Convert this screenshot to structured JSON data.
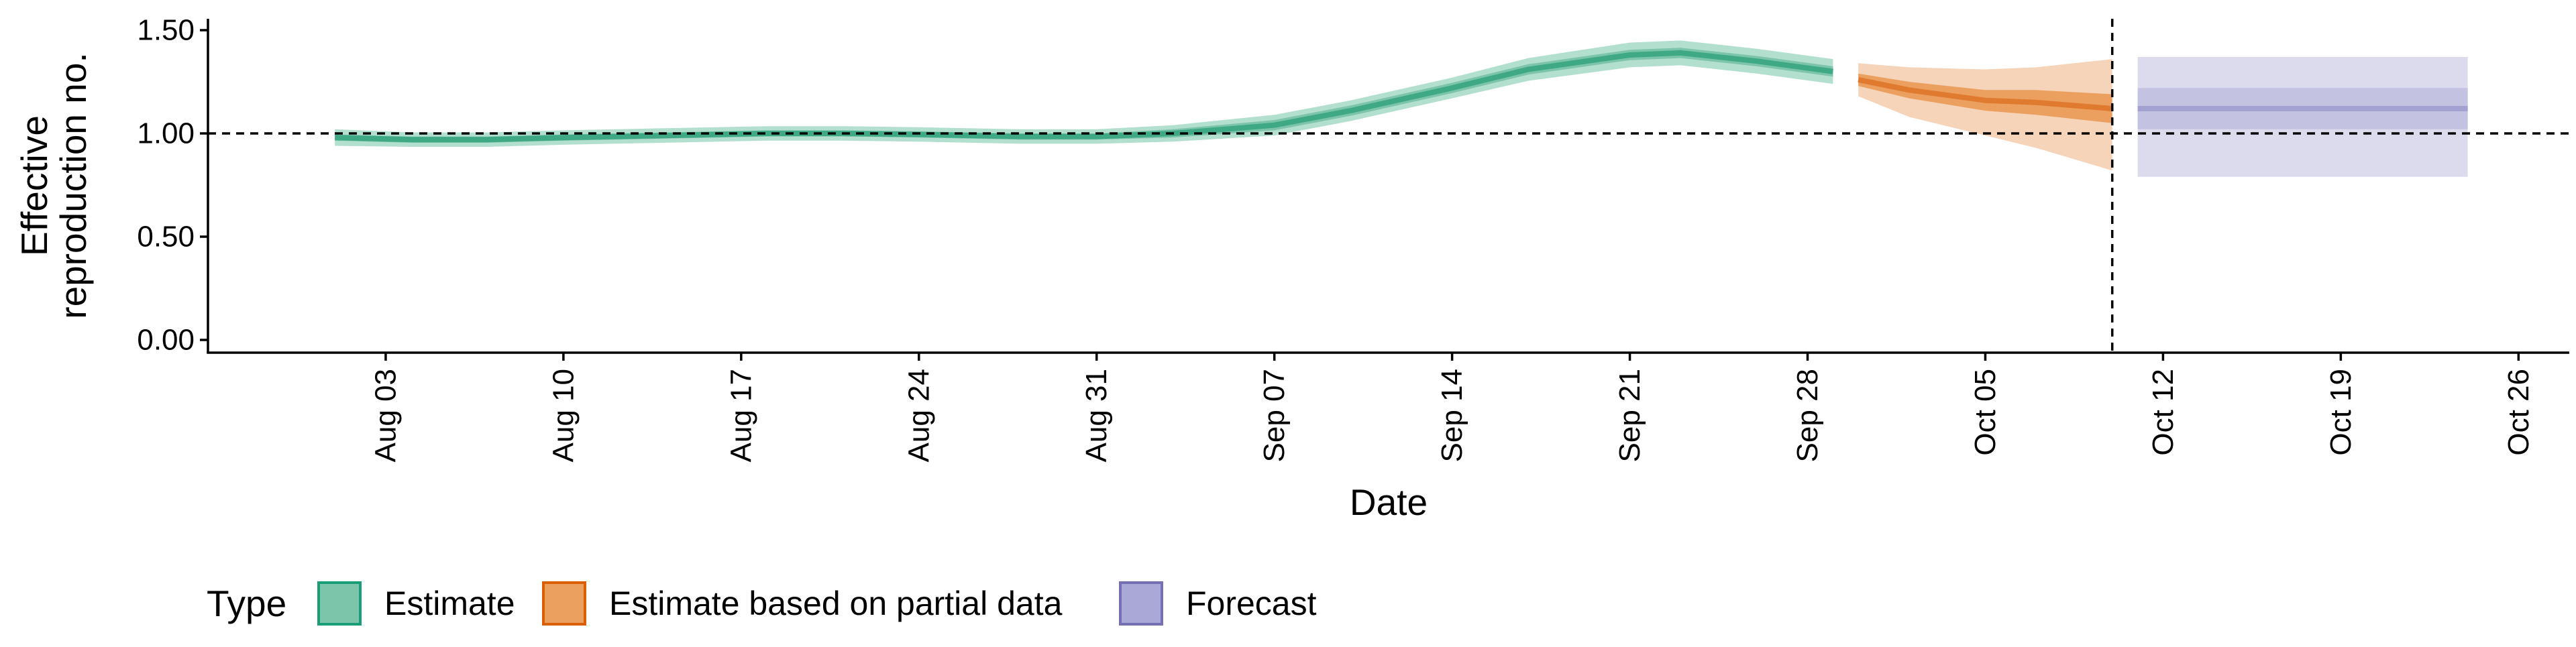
{
  "chart_data": {
    "type": "area",
    "xlabel": "Date",
    "ylabel_lines": [
      "Effective",
      "reproduction no."
    ],
    "ylim": [
      0,
      1.55
    ],
    "xlim": [
      "2025-07-27",
      "2025-10-28"
    ],
    "y_ticks": [
      {
        "value": 0,
        "label": "0.00"
      },
      {
        "value": 0.5,
        "label": "0.50"
      },
      {
        "value": 1.0,
        "label": "1.00"
      },
      {
        "value": 1.5,
        "label": "1.50"
      }
    ],
    "x_ticks": [
      {
        "date": "2025-08-03",
        "label": "Aug 03"
      },
      {
        "date": "2025-08-10",
        "label": "Aug 10"
      },
      {
        "date": "2025-08-17",
        "label": "Aug 17"
      },
      {
        "date": "2025-08-24",
        "label": "Aug 24"
      },
      {
        "date": "2025-08-31",
        "label": "Aug 31"
      },
      {
        "date": "2025-09-07",
        "label": "Sep 07"
      },
      {
        "date": "2025-09-14",
        "label": "Sep 14"
      },
      {
        "date": "2025-09-21",
        "label": "Sep 21"
      },
      {
        "date": "2025-09-28",
        "label": "Sep 28"
      },
      {
        "date": "2025-10-05",
        "label": "Oct 05"
      },
      {
        "date": "2025-10-12",
        "label": "Oct 12"
      },
      {
        "date": "2025-10-19",
        "label": "Oct 19"
      },
      {
        "date": "2025-10-26",
        "label": "Oct 26"
      }
    ],
    "reference_lines": {
      "horizontal_y": 1.0,
      "vertical_date": "2025-10-10"
    },
    "grid": false,
    "legend": {
      "title": "Type",
      "position": "bottom-left",
      "entries": [
        {
          "label": "Estimate",
          "fill": "#7cc5ab",
          "stroke": "#1b9e77"
        },
        {
          "label": "Estimate based on partial data",
          "fill": "#eca060",
          "stroke": "#d95f02"
        },
        {
          "label": "Forecast",
          "fill": "#aaa8d6",
          "stroke": "#7570b3"
        }
      ]
    },
    "series": [
      {
        "name": "Estimate",
        "colors": {
          "outer": "#b3dfcf",
          "mid": "#7cc5ab",
          "inner": "#5db596",
          "line": "#3fa884"
        },
        "points": [
          {
            "date": "2025-08-01",
            "median": 0.98,
            "lo50": 0.965,
            "hi50": 0.995,
            "lo90": 0.94,
            "hi90": 1.02
          },
          {
            "date": "2025-08-04",
            "median": 0.97,
            "lo50": 0.955,
            "hi50": 0.985,
            "lo90": 0.935,
            "hi90": 1.005
          },
          {
            "date": "2025-08-07",
            "median": 0.97,
            "lo50": 0.955,
            "hi50": 0.985,
            "lo90": 0.935,
            "hi90": 1.005
          },
          {
            "date": "2025-08-10",
            "median": 0.98,
            "lo50": 0.965,
            "hi50": 0.995,
            "lo90": 0.945,
            "hi90": 1.015
          },
          {
            "date": "2025-08-14",
            "median": 0.99,
            "lo50": 0.975,
            "hi50": 1.005,
            "lo90": 0.955,
            "hi90": 1.025
          },
          {
            "date": "2025-08-18",
            "median": 1.0,
            "lo50": 0.985,
            "hi50": 1.015,
            "lo90": 0.965,
            "hi90": 1.035
          },
          {
            "date": "2025-08-21",
            "median": 1.0,
            "lo50": 0.985,
            "hi50": 1.015,
            "lo90": 0.965,
            "hi90": 1.035
          },
          {
            "date": "2025-08-24",
            "median": 0.995,
            "lo50": 0.98,
            "hi50": 1.01,
            "lo90": 0.96,
            "hi90": 1.03
          },
          {
            "date": "2025-08-28",
            "median": 0.985,
            "lo50": 0.97,
            "hi50": 1.0,
            "lo90": 0.95,
            "hi90": 1.02
          },
          {
            "date": "2025-08-31",
            "median": 0.985,
            "lo50": 0.97,
            "hi50": 1.0,
            "lo90": 0.95,
            "hi90": 1.02
          },
          {
            "date": "2025-09-03",
            "median": 1.0,
            "lo50": 0.98,
            "hi50": 1.02,
            "lo90": 0.96,
            "hi90": 1.04
          },
          {
            "date": "2025-09-07",
            "median": 1.04,
            "lo50": 1.015,
            "hi50": 1.065,
            "lo90": 0.99,
            "hi90": 1.09
          },
          {
            "date": "2025-09-10",
            "median": 1.11,
            "lo50": 1.085,
            "hi50": 1.135,
            "lo90": 1.06,
            "hi90": 1.16
          },
          {
            "date": "2025-09-14",
            "median": 1.22,
            "lo50": 1.195,
            "hi50": 1.245,
            "lo90": 1.17,
            "hi90": 1.27
          },
          {
            "date": "2025-09-17",
            "median": 1.31,
            "lo50": 1.285,
            "hi50": 1.335,
            "lo90": 1.255,
            "hi90": 1.365
          },
          {
            "date": "2025-09-21",
            "median": 1.38,
            "lo50": 1.355,
            "hi50": 1.405,
            "lo90": 1.32,
            "hi90": 1.44
          },
          {
            "date": "2025-09-23",
            "median": 1.39,
            "lo50": 1.365,
            "hi50": 1.415,
            "lo90": 1.33,
            "hi90": 1.45
          },
          {
            "date": "2025-09-26",
            "median": 1.35,
            "lo50": 1.325,
            "hi50": 1.375,
            "lo90": 1.29,
            "hi90": 1.41
          },
          {
            "date": "2025-09-29",
            "median": 1.3,
            "lo50": 1.275,
            "hi50": 1.325,
            "lo90": 1.24,
            "hi90": 1.36
          }
        ]
      },
      {
        "name": "Estimate based on partial data",
        "colors": {
          "outer": "#f6d4b9",
          "mid": "#eca060",
          "inner": "#e68f4a",
          "line": "#df7a2e"
        },
        "points": [
          {
            "date": "2025-09-30",
            "median": 1.26,
            "lo50": 1.23,
            "hi50": 1.29,
            "lo90": 1.18,
            "hi90": 1.34
          },
          {
            "date": "2025-10-02",
            "median": 1.21,
            "lo50": 1.17,
            "hi50": 1.25,
            "lo90": 1.08,
            "hi90": 1.32
          },
          {
            "date": "2025-10-05",
            "median": 1.16,
            "lo50": 1.11,
            "hi50": 1.21,
            "lo90": 0.99,
            "hi90": 1.31
          },
          {
            "date": "2025-10-07",
            "median": 1.15,
            "lo50": 1.09,
            "hi50": 1.21,
            "lo90": 0.93,
            "hi90": 1.32
          },
          {
            "date": "2025-10-10",
            "median": 1.12,
            "lo50": 1.05,
            "hi50": 1.19,
            "lo90": 0.82,
            "hi90": 1.36
          }
        ]
      },
      {
        "name": "Forecast",
        "colors": {
          "outer": "#dcdbee",
          "mid": "#c4c2e1",
          "inner": "#aaa8d6",
          "line": "#a3a0d2"
        },
        "points": [
          {
            "date": "2025-10-11",
            "median": 1.12,
            "lo50": 1.02,
            "hi50": 1.22,
            "lo90": 0.79,
            "hi90": 1.37
          },
          {
            "date": "2025-10-24",
            "median": 1.12,
            "lo50": 1.02,
            "hi50": 1.22,
            "lo90": 0.79,
            "hi90": 1.37
          }
        ]
      }
    ]
  }
}
